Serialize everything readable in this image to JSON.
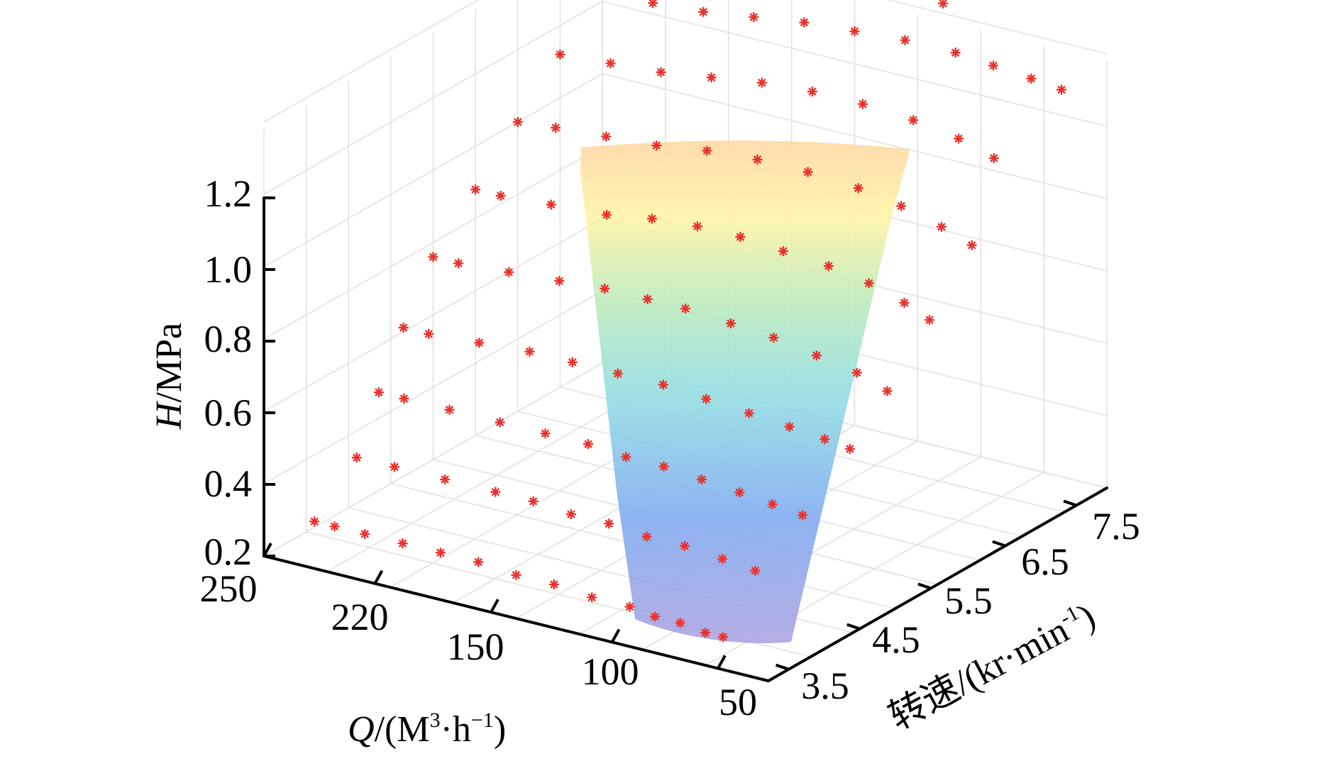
{
  "chart_data": {
    "type": "surface3d",
    "title": "",
    "xlabel": {
      "var": "Q",
      "unit_open": "/(M",
      "sup1": "3",
      "mid": "·h",
      "sup2": "−1",
      "close": ")"
    },
    "ylabel": {
      "text": "转速/(kr·min",
      "sup": "-1",
      "close": ")"
    },
    "zlabel": {
      "var": "H",
      "unit": "/MPa"
    },
    "x_ticks": [
      "250",
      "220",
      "150",
      "100",
      "50"
    ],
    "y_ticks": [
      "3.5",
      "4.5",
      "5.5",
      "6.5",
      "7.5"
    ],
    "z_ticks": [
      "0.2",
      "0.4",
      "0.6",
      "0.8",
      "1.0",
      "1.2"
    ],
    "zlim": [
      0.2,
      1.2
    ],
    "grid": true,
    "surface_colormap": [
      "#a89fe0",
      "#7aa7f0",
      "#8fdce0",
      "#b9eab8",
      "#fff3a0",
      "#ffd6a0"
    ],
    "marker_color": "#e8322c",
    "marker": "asterisk",
    "speed_levels": [
      {
        "speed": 3.5,
        "Q": [
          230,
          222,
          210,
          195,
          180,
          165,
          150,
          135,
          120,
          105,
          95,
          85,
          75,
          68
        ],
        "H": [
          0.33,
          0.33,
          0.33,
          0.33,
          0.33,
          0.33,
          0.32,
          0.32,
          0.31,
          0.31,
          0.3,
          0.3,
          0.29,
          0.29
        ]
      },
      {
        "speed": 4.0,
        "Q": [
          230,
          215,
          195,
          175,
          160,
          145,
          130,
          115,
          100,
          85,
          72
        ],
        "H": [
          0.44,
          0.44,
          0.44,
          0.44,
          0.44,
          0.43,
          0.43,
          0.42,
          0.42,
          0.41,
          0.4
        ]
      },
      {
        "speed": 4.5,
        "Q": [
          238,
          228,
          210,
          190,
          172,
          155,
          140,
          125,
          110,
          95,
          82,
          70
        ],
        "H": [
          0.54,
          0.54,
          0.54,
          0.54,
          0.54,
          0.54,
          0.53,
          0.53,
          0.52,
          0.51,
          0.5,
          0.49
        ]
      },
      {
        "speed": 5.0,
        "Q": [
          245,
          235,
          215,
          195,
          178,
          160,
          142,
          125,
          108,
          92,
          78,
          68
        ],
        "H": [
          0.64,
          0.64,
          0.65,
          0.66,
          0.66,
          0.66,
          0.66,
          0.65,
          0.64,
          0.63,
          0.62,
          0.61
        ]
      },
      {
        "speed": 5.5,
        "Q": [
          250,
          240,
          220,
          200,
          182,
          165,
          150,
          132,
          115,
          98,
          82,
          70
        ],
        "H": [
          0.76,
          0.76,
          0.77,
          0.78,
          0.79,
          0.79,
          0.79,
          0.78,
          0.77,
          0.75,
          0.73,
          0.7
        ]
      },
      {
        "speed": 6.0,
        "Q": [
          250,
          240,
          220,
          198,
          180,
          162,
          145,
          128,
          110,
          94,
          80,
          70
        ],
        "H": [
          0.88,
          0.88,
          0.89,
          0.9,
          0.92,
          0.93,
          0.93,
          0.92,
          0.91,
          0.89,
          0.86,
          0.83
        ]
      },
      {
        "speed": 6.5,
        "Q": [
          250,
          235,
          215,
          195,
          175,
          155,
          135,
          115,
          98,
          82,
          70
        ],
        "H": [
          1.0,
          1.01,
          1.02,
          1.03,
          1.05,
          1.06,
          1.06,
          1.05,
          1.03,
          1.0,
          0.97
        ]
      },
      {
        "speed": 7.0,
        "Q": [
          250,
          230,
          210,
          190,
          170,
          150,
          130,
          110,
          92,
          78
        ],
        "H": [
          1.12,
          1.13,
          1.14,
          1.16,
          1.18,
          1.19,
          1.19,
          1.18,
          1.16,
          1.13
        ]
      },
      {
        "speed": 7.5,
        "Q": [
          250,
          230,
          210,
          190,
          170,
          150,
          130,
          110,
          95,
          80,
          68
        ],
        "H": [
          1.22,
          1.23,
          1.24,
          1.26,
          1.28,
          1.29,
          1.3,
          1.3,
          1.29,
          1.28,
          1.27
        ]
      },
      {
        "speed": 7.8,
        "Q": [
          245,
          225,
          205,
          185,
          165,
          145,
          125
        ],
        "H": [
          1.34,
          1.35,
          1.36,
          1.37,
          1.38,
          1.38,
          1.37
        ]
      }
    ]
  }
}
